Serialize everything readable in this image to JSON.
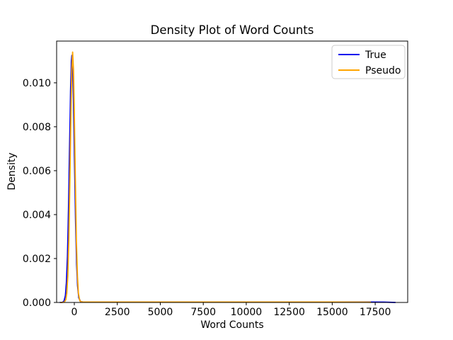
{
  "chart_data": {
    "type": "line",
    "title": "Density Plot of Word Counts",
    "xlabel": "Word Counts",
    "ylabel": "Density",
    "xlim": [
      -1030,
      19390
    ],
    "ylim": [
      0,
      0.0119
    ],
    "grid": false,
    "x_ticks": [
      0,
      2500,
      5000,
      7500,
      10000,
      12500,
      15000,
      17500
    ],
    "x_tick_labels": [
      "0",
      "2500",
      "5000",
      "7500",
      "10000",
      "12500",
      "15000",
      "17500"
    ],
    "y_ticks": [
      0.0,
      0.002,
      0.004,
      0.006,
      0.008,
      0.01
    ],
    "y_tick_labels": [
      "0.000",
      "0.002",
      "0.004",
      "0.006",
      "0.008",
      "0.010"
    ],
    "legend": {
      "position": "upper right",
      "entries": [
        {
          "label": "True",
          "color": "#0000ee"
        },
        {
          "label": "Pseudo",
          "color": "#ffa500"
        }
      ]
    },
    "series": [
      {
        "name": "True",
        "color": "#0000ee",
        "peak_density": 0.01125,
        "points": [
          [
            -840,
            0.0
          ],
          [
            -700,
            5e-06
          ],
          [
            -600,
            6e-05
          ],
          [
            -520,
            0.00031
          ],
          [
            -460,
            0.00089
          ],
          [
            -400,
            0.0021
          ],
          [
            -340,
            0.0042
          ],
          [
            -280,
            0.0069
          ],
          [
            -220,
            0.0096
          ],
          [
            -170,
            0.011
          ],
          [
            -140,
            0.01125
          ],
          [
            -100,
            0.0108
          ],
          [
            -50,
            0.0092
          ],
          [
            10,
            0.0064
          ],
          [
            70,
            0.0038
          ],
          [
            130,
            0.0018
          ],
          [
            190,
            0.00076
          ],
          [
            260,
            0.00021
          ],
          [
            360,
            4e-05
          ],
          [
            500,
            2e-05
          ],
          [
            1000,
            2e-05
          ],
          [
            2500,
            2e-05
          ],
          [
            5000,
            2e-05
          ],
          [
            7500,
            2e-05
          ],
          [
            10000,
            2e-05
          ],
          [
            12500,
            2e-05
          ],
          [
            15000,
            2e-05
          ],
          [
            17000,
            2e-05
          ],
          [
            18000,
            1.5e-05
          ],
          [
            18680,
            0.0
          ]
        ]
      },
      {
        "name": "Pseudo",
        "color": "#ffa500",
        "peak_density": 0.0114,
        "points": [
          [
            -820,
            0.0
          ],
          [
            -700,
            3e-06
          ],
          [
            -580,
            1.5e-05
          ],
          [
            -500,
            0.00012
          ],
          [
            -440,
            0.00041
          ],
          [
            -380,
            0.0012
          ],
          [
            -320,
            0.0028
          ],
          [
            -260,
            0.0055
          ],
          [
            -200,
            0.0086
          ],
          [
            -150,
            0.0106
          ],
          [
            -100,
            0.0114
          ],
          [
            -50,
            0.0106
          ],
          [
            0,
            0.0086
          ],
          [
            60,
            0.0055
          ],
          [
            120,
            0.0028
          ],
          [
            180,
            0.0012
          ],
          [
            240,
            0.00041
          ],
          [
            320,
            7e-05
          ],
          [
            450,
            2e-05
          ],
          [
            1000,
            2e-05
          ],
          [
            2500,
            2e-05
          ],
          [
            5000,
            2e-05
          ],
          [
            7500,
            2e-05
          ],
          [
            10000,
            2e-05
          ],
          [
            12500,
            2e-05
          ],
          [
            15000,
            2e-05
          ],
          [
            16800,
            1.5e-05
          ],
          [
            17250,
            1e-05
          ]
        ]
      }
    ]
  }
}
